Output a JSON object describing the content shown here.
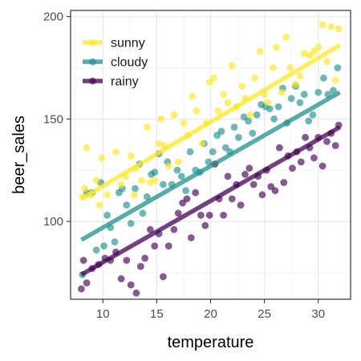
{
  "chart_data": {
    "type": "scatter",
    "title": "",
    "xlabel": "temperature",
    "ylabel": "beer_sales",
    "xlim": [
      7,
      33
    ],
    "ylim": [
      62,
      203
    ],
    "x_ticks": [
      10,
      15,
      20,
      25,
      30
    ],
    "y_ticks": [
      100,
      150,
      200
    ],
    "x_tick_labels": [
      "10",
      "15",
      "20",
      "25",
      "30"
    ],
    "y_tick_labels": [
      "100",
      "150",
      "200"
    ],
    "grid": true,
    "legend": "top-left",
    "has_regression_lines": true,
    "series": [
      {
        "name": "sunny",
        "color": "#FDE725",
        "fit": {
          "x": [
            8,
            32
          ],
          "y": [
            111,
            186
          ]
        },
        "points": [
          [
            8.1,
            112
          ],
          [
            8.3,
            116
          ],
          [
            8.5,
            136
          ],
          [
            8.9,
            113
          ],
          [
            9.4,
            120
          ],
          [
            9.7,
            108
          ],
          [
            9.9,
            131
          ],
          [
            10.4,
            113
          ],
          [
            11.2,
            134
          ],
          [
            11.7,
            118
          ],
          [
            12.1,
            122
          ],
          [
            12.6,
            132
          ],
          [
            12.9,
            113
          ],
          [
            13.1,
            126
          ],
          [
            13.6,
            120
          ],
          [
            14.1,
            146
          ],
          [
            14.4,
            119
          ],
          [
            14.8,
            120
          ],
          [
            15.2,
            138
          ],
          [
            15.4,
            150
          ],
          [
            15.7,
            137
          ],
          [
            16.1,
            127
          ],
          [
            16.6,
            152
          ],
          [
            17.0,
            129
          ],
          [
            17.5,
            148
          ],
          [
            17.9,
            142
          ],
          [
            18.3,
            161
          ],
          [
            18.7,
            154
          ],
          [
            19.2,
            138
          ],
          [
            19.6,
            148
          ],
          [
            19.9,
            168
          ],
          [
            20.3,
            170
          ],
          [
            20.7,
            154
          ],
          [
            21.2,
            162
          ],
          [
            21.6,
            158
          ],
          [
            22.0,
            176
          ],
          [
            22.4,
            156
          ],
          [
            22.9,
            166
          ],
          [
            23.2,
            160
          ],
          [
            23.7,
            152
          ],
          [
            24.1,
            170
          ],
          [
            24.6,
            183
          ],
          [
            25.0,
            162
          ],
          [
            25.3,
            158
          ],
          [
            25.8,
            175
          ],
          [
            26.1,
            185
          ],
          [
            26.6,
            163
          ],
          [
            27.0,
            190
          ],
          [
            27.4,
            175
          ],
          [
            27.9,
            167
          ],
          [
            28.3,
            171
          ],
          [
            28.7,
            182
          ],
          [
            29.2,
            181
          ],
          [
            29.6,
            183
          ],
          [
            30.0,
            185
          ],
          [
            30.4,
            196
          ],
          [
            30.8,
            178
          ],
          [
            31.2,
            195
          ],
          [
            31.6,
            169
          ],
          [
            31.9,
            194
          ]
        ]
      },
      {
        "name": "cloudy",
        "color": "#21918C",
        "fit": {
          "x": [
            8,
            32
          ],
          "y": [
            91,
            163
          ]
        },
        "points": [
          [
            8.1,
            74
          ],
          [
            8.5,
            114
          ],
          [
            9.0,
            114
          ],
          [
            9.4,
            86
          ],
          [
            9.8,
            119
          ],
          [
            10.1,
            88
          ],
          [
            10.4,
            103
          ],
          [
            10.7,
            97
          ],
          [
            11.1,
            90
          ],
          [
            11.5,
            114
          ],
          [
            11.8,
            116
          ],
          [
            12.2,
            108
          ],
          [
            12.6,
            99
          ],
          [
            13.0,
            116
          ],
          [
            13.4,
            128
          ],
          [
            13.7,
            104
          ],
          [
            14.1,
            112
          ],
          [
            14.5,
            123
          ],
          [
            14.8,
            124
          ],
          [
            15.2,
            133
          ],
          [
            15.6,
            118
          ],
          [
            16.0,
            129
          ],
          [
            16.4,
            118
          ],
          [
            16.9,
            125
          ],
          [
            17.3,
            122
          ],
          [
            17.7,
            115
          ],
          [
            18.1,
            134
          ],
          [
            18.6,
            125
          ],
          [
            19.0,
            124
          ],
          [
            19.4,
            138
          ],
          [
            19.8,
            129
          ],
          [
            20.2,
            134
          ],
          [
            20.6,
            142
          ],
          [
            21.0,
            144
          ],
          [
            21.4,
            136
          ],
          [
            21.8,
            134
          ],
          [
            22.2,
            146
          ],
          [
            22.6,
            141
          ],
          [
            23.1,
            151
          ],
          [
            23.5,
            149
          ],
          [
            23.9,
            143
          ],
          [
            24.3,
            152
          ],
          [
            24.7,
            157
          ],
          [
            25.1,
            156
          ],
          [
            25.5,
            155
          ],
          [
            25.9,
            150
          ],
          [
            26.3,
            156
          ],
          [
            26.7,
            165
          ],
          [
            27.1,
            148
          ],
          [
            27.5,
            160
          ],
          [
            27.9,
            166
          ],
          [
            28.3,
            158
          ],
          [
            28.7,
            162
          ],
          [
            29.1,
            149
          ],
          [
            29.5,
            152
          ],
          [
            30.0,
            163
          ],
          [
            30.5,
            170
          ],
          [
            30.9,
            162
          ],
          [
            31.4,
            164
          ],
          [
            31.8,
            175
          ]
        ]
      },
      {
        "name": "rainy",
        "color": "#440154",
        "fit": {
          "x": [
            8,
            32
          ],
          "y": [
            74,
            146
          ]
        },
        "points": [
          [
            8.0,
            67
          ],
          [
            8.2,
            81
          ],
          [
            8.5,
            70
          ],
          [
            9.0,
            77
          ],
          [
            9.6,
            79
          ],
          [
            10.2,
            82
          ],
          [
            10.7,
            81
          ],
          [
            11.2,
            85
          ],
          [
            11.7,
            72
          ],
          [
            12.2,
            81
          ],
          [
            12.6,
            69
          ],
          [
            13.1,
            65
          ],
          [
            13.5,
            78
          ],
          [
            13.9,
            82
          ],
          [
            14.4,
            96
          ],
          [
            14.8,
            88
          ],
          [
            15.2,
            94
          ],
          [
            15.6,
            73
          ],
          [
            16.1,
            88
          ],
          [
            16.6,
            96
          ],
          [
            17.0,
            104
          ],
          [
            17.4,
            109
          ],
          [
            17.8,
            111
          ],
          [
            18.2,
            92
          ],
          [
            18.6,
            114
          ],
          [
            19.1,
            103
          ],
          [
            19.5,
            98
          ],
          [
            19.9,
            103
          ],
          [
            20.4,
            128
          ],
          [
            20.8,
            111
          ],
          [
            21.2,
            103
          ],
          [
            21.6,
            122
          ],
          [
            22.0,
            111
          ],
          [
            22.4,
            118
          ],
          [
            22.8,
            108
          ],
          [
            23.2,
            123
          ],
          [
            23.6,
            126
          ],
          [
            24.0,
            118
          ],
          [
            24.4,
            122
          ],
          [
            24.8,
            113
          ],
          [
            25.2,
            125
          ],
          [
            25.6,
            117
          ],
          [
            26.0,
            115
          ],
          [
            26.4,
            136
          ],
          [
            26.8,
            119
          ],
          [
            27.2,
            132
          ],
          [
            27.6,
            126
          ],
          [
            28.0,
            134
          ],
          [
            28.4,
            129
          ],
          [
            28.8,
            141
          ],
          [
            29.2,
            136
          ],
          [
            29.6,
            131
          ],
          [
            30.0,
            141
          ],
          [
            30.4,
            127
          ],
          [
            30.8,
            139
          ],
          [
            31.2,
            143
          ],
          [
            31.6,
            137
          ],
          [
            31.9,
            147
          ]
        ]
      }
    ]
  }
}
